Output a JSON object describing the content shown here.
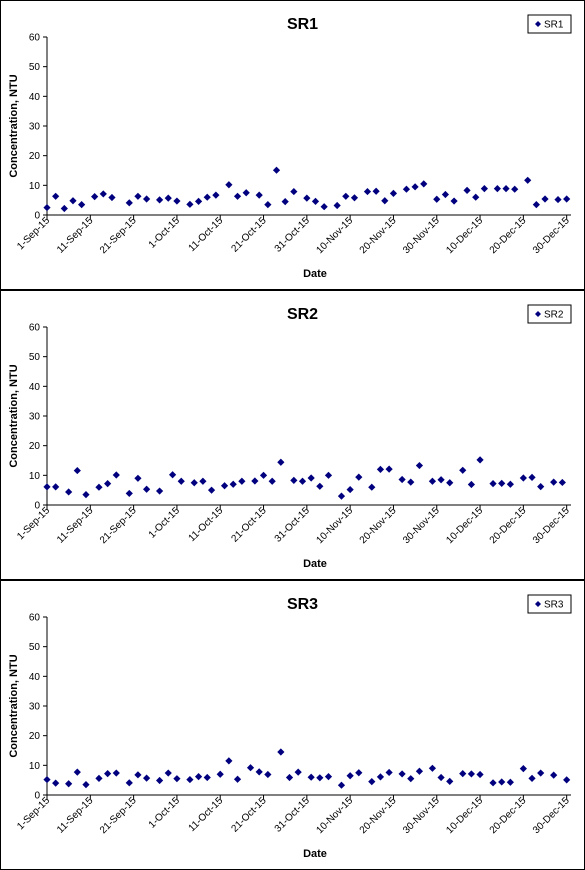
{
  "chart_data": [
    {
      "type": "scatter",
      "title": "SR1",
      "xlabel": "Date",
      "ylabel": "Concentration, NTU",
      "ylim": [
        0,
        60
      ],
      "yticks": [
        "0",
        "10",
        "20",
        "30",
        "40",
        "50",
        "60"
      ],
      "xticks": [
        "1-Sep-15",
        "11-Sep-15",
        "21-Sep-15",
        "1-Oct-15",
        "11-Oct-15",
        "21-Oct-15",
        "31-Oct-15",
        "10-Nov-15",
        "20-Nov-15",
        "30-Nov-15",
        "10-Dec-15",
        "20-Dec-15",
        "30-Dec-15"
      ],
      "xrange": [
        "2015-09-01",
        "2015-12-31"
      ],
      "legend_position": "top-right",
      "marker_color": "#00007f",
      "series": [
        {
          "name": "SR1",
          "x": [
            "2015-09-01",
            "2015-09-03",
            "2015-09-05",
            "2015-09-07",
            "2015-09-09",
            "2015-09-12",
            "2015-09-14",
            "2015-09-16",
            "2015-09-20",
            "2015-09-22",
            "2015-09-24",
            "2015-09-27",
            "2015-09-29",
            "2015-10-01",
            "2015-10-04",
            "2015-10-06",
            "2015-10-08",
            "2015-10-10",
            "2015-10-13",
            "2015-10-15",
            "2015-10-17",
            "2015-10-20",
            "2015-10-22",
            "2015-10-24",
            "2015-10-26",
            "2015-10-28",
            "2015-10-31",
            "2015-11-02",
            "2015-11-04",
            "2015-11-07",
            "2015-11-09",
            "2015-11-11",
            "2015-11-14",
            "2015-11-16",
            "2015-11-18",
            "2015-11-20",
            "2015-11-23",
            "2015-11-25",
            "2015-11-27",
            "2015-11-30",
            "2015-12-02",
            "2015-12-04",
            "2015-12-07",
            "2015-12-09",
            "2015-12-11",
            "2015-12-14",
            "2015-12-16",
            "2015-12-18",
            "2015-12-21",
            "2015-12-23",
            "2015-12-25",
            "2015-12-28",
            "2015-12-30"
          ],
          "y": [
            2.5,
            6.3,
            2.2,
            4.8,
            3.5,
            6.2,
            7.1,
            5.9,
            4.1,
            6.3,
            5.4,
            5.1,
            5.7,
            4.7,
            3.6,
            4.6,
            6.0,
            6.7,
            10.2,
            6.3,
            7.5,
            6.7,
            3.5,
            15.1,
            4.5,
            7.9,
            5.7,
            4.6,
            2.8,
            3.2,
            6.3,
            5.8,
            7.9,
            8.0,
            4.8,
            7.3,
            8.7,
            9.5,
            10.5,
            5.3,
            6.9,
            4.7,
            8.3,
            6.0,
            8.9,
            8.9,
            8.9,
            8.7,
            11.7,
            3.5,
            5.4,
            5.2,
            5.4
          ]
        }
      ]
    },
    {
      "type": "scatter",
      "title": "SR2",
      "xlabel": "Date",
      "ylabel": "Concentration, NTU",
      "ylim": [
        0,
        60
      ],
      "yticks": [
        "0",
        "10",
        "20",
        "30",
        "40",
        "50",
        "60"
      ],
      "xticks": [
        "1-Sep-15",
        "11-Sep-15",
        "21-Sep-15",
        "1-Oct-15",
        "11-Oct-15",
        "21-Oct-15",
        "31-Oct-15",
        "10-Nov-15",
        "20-Nov-15",
        "30-Nov-15",
        "10-Dec-15",
        "20-Dec-15",
        "30-Dec-15"
      ],
      "xrange": [
        "2015-09-01",
        "2015-12-31"
      ],
      "legend_position": "top-right",
      "marker_color": "#00007f",
      "series": [
        {
          "name": "SR2",
          "x": [
            "2015-09-01",
            "2015-09-03",
            "2015-09-06",
            "2015-09-08",
            "2015-09-10",
            "2015-09-13",
            "2015-09-15",
            "2015-09-17",
            "2015-09-20",
            "2015-09-22",
            "2015-09-24",
            "2015-09-27",
            "2015-09-30",
            "2015-10-02",
            "2015-10-05",
            "2015-10-07",
            "2015-10-09",
            "2015-10-12",
            "2015-10-14",
            "2015-10-16",
            "2015-10-19",
            "2015-10-21",
            "2015-10-23",
            "2015-10-25",
            "2015-10-28",
            "2015-10-30",
            "2015-11-01",
            "2015-11-03",
            "2015-11-05",
            "2015-11-08",
            "2015-11-10",
            "2015-11-12",
            "2015-11-15",
            "2015-11-17",
            "2015-11-19",
            "2015-11-22",
            "2015-11-24",
            "2015-11-26",
            "2015-11-29",
            "2015-12-01",
            "2015-12-03",
            "2015-12-06",
            "2015-12-08",
            "2015-12-10",
            "2015-12-13",
            "2015-12-15",
            "2015-12-17",
            "2015-12-20",
            "2015-12-22",
            "2015-12-24",
            "2015-12-27",
            "2015-12-29"
          ],
          "y": [
            6.1,
            6.1,
            4.4,
            11.6,
            3.5,
            6.0,
            7.2,
            10.1,
            3.9,
            9.0,
            5.3,
            4.7,
            10.2,
            8.0,
            7.5,
            8.0,
            5.0,
            6.5,
            7.0,
            8.0,
            8.1,
            10.0,
            8.0,
            14.4,
            8.3,
            8.0,
            9.1,
            6.3,
            10.0,
            3.0,
            5.2,
            9.4,
            6.0,
            12.0,
            12.1,
            8.6,
            7.7,
            13.3,
            8.0,
            8.5,
            7.5,
            11.7,
            6.9,
            15.2,
            7.2,
            7.3,
            7.0,
            9.1,
            9.3,
            6.2,
            7.7,
            7.6
          ]
        }
      ]
    },
    {
      "type": "scatter",
      "title": "SR3",
      "xlabel": "Date",
      "ylabel": "Concentration, NTU",
      "ylim": [
        0,
        60
      ],
      "yticks": [
        "0",
        "10",
        "20",
        "30",
        "40",
        "50",
        "60"
      ],
      "xticks": [
        "1-Sep-15",
        "11-Sep-15",
        "21-Sep-15",
        "1-Oct-15",
        "11-Oct-15",
        "21-Oct-15",
        "31-Oct-15",
        "10-Nov-15",
        "20-Nov-15",
        "30-Nov-15",
        "10-Dec-15",
        "20-Dec-15",
        "30-Dec-15"
      ],
      "xrange": [
        "2015-09-01",
        "2015-12-31"
      ],
      "legend_position": "top-right",
      "marker_color": "#00007f",
      "series": [
        {
          "name": "SR3",
          "x": [
            "2015-09-01",
            "2015-09-03",
            "2015-09-06",
            "2015-09-08",
            "2015-09-10",
            "2015-09-13",
            "2015-09-15",
            "2015-09-17",
            "2015-09-20",
            "2015-09-22",
            "2015-09-24",
            "2015-09-27",
            "2015-09-29",
            "2015-10-01",
            "2015-10-04",
            "2015-10-06",
            "2015-10-08",
            "2015-10-11",
            "2015-10-13",
            "2015-10-15",
            "2015-10-18",
            "2015-10-20",
            "2015-10-22",
            "2015-10-25",
            "2015-10-27",
            "2015-10-29",
            "2015-11-01",
            "2015-11-03",
            "2015-11-05",
            "2015-11-08",
            "2015-11-10",
            "2015-11-12",
            "2015-11-15",
            "2015-11-17",
            "2015-11-19",
            "2015-11-22",
            "2015-11-24",
            "2015-11-26",
            "2015-11-29",
            "2015-12-01",
            "2015-12-03",
            "2015-12-06",
            "2015-12-08",
            "2015-12-10",
            "2015-12-13",
            "2015-12-15",
            "2015-12-17",
            "2015-12-20",
            "2015-12-22",
            "2015-12-24",
            "2015-12-27",
            "2015-12-30"
          ],
          "y": [
            5.2,
            4.0,
            3.8,
            7.7,
            3.5,
            5.6,
            7.2,
            7.4,
            4.1,
            6.8,
            5.7,
            4.9,
            7.4,
            5.5,
            5.2,
            6.2,
            5.9,
            7.0,
            11.5,
            5.3,
            9.2,
            7.8,
            6.9,
            14.5,
            5.9,
            7.7,
            6.0,
            5.8,
            6.2,
            3.3,
            6.5,
            7.5,
            4.5,
            6.1,
            7.6,
            7.1,
            5.5,
            8.0,
            9.0,
            5.9,
            4.6,
            7.2,
            7.1,
            6.9,
            4.1,
            4.4,
            4.3,
            8.9,
            5.6,
            7.4,
            6.7,
            5.1
          ]
        }
      ]
    }
  ]
}
